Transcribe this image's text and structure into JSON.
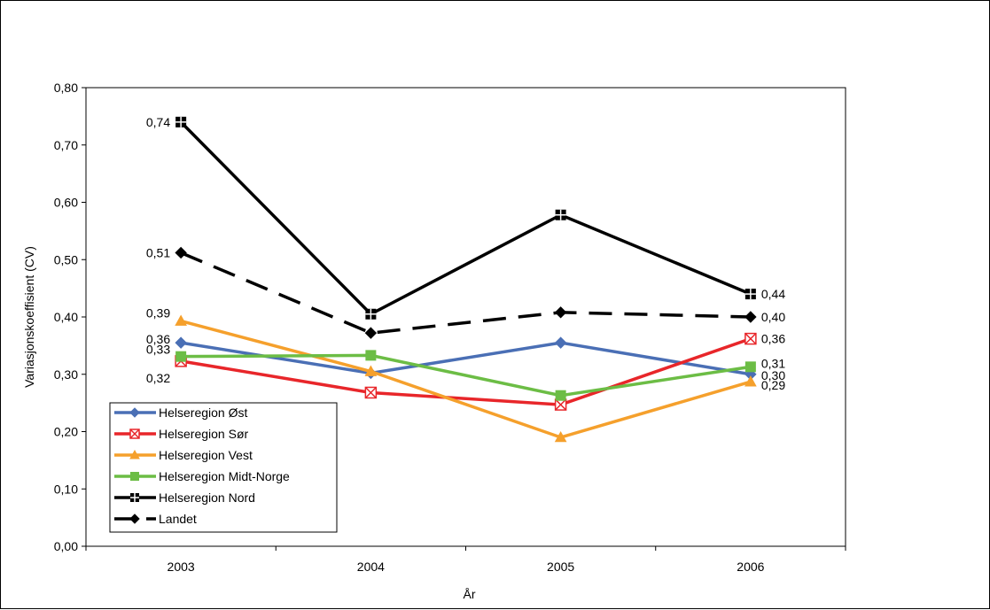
{
  "chart_data": {
    "type": "line",
    "title": "",
    "xlabel": "År",
    "ylabel": "Variasjonskoeffisient (CV)",
    "categories": [
      "2003",
      "2004",
      "2005",
      "2006"
    ],
    "ylim": [
      0,
      0.8
    ],
    "yticks": [
      "0,00",
      "0,10",
      "0,20",
      "0,30",
      "0,40",
      "0,50",
      "0,60",
      "0,70",
      "0,80"
    ],
    "grid": false,
    "legend_position": "bottom-left",
    "series": [
      {
        "name": "Helseregion Øst",
        "values": [
          0.355,
          0.302,
          0.355,
          0.3
        ],
        "color": "#4a6fb5",
        "marker": "diamond",
        "dash": "solid",
        "labels": [
          "0,36",
          "",
          "",
          "0,30"
        ]
      },
      {
        "name": "Helseregion Sør",
        "values": [
          0.323,
          0.268,
          0.247,
          0.362
        ],
        "color": "#e8262a",
        "marker": "xsquare",
        "dash": "solid",
        "labels": [
          "0,32",
          "",
          "",
          "0,36"
        ]
      },
      {
        "name": "Helseregion Vest",
        "values": [
          0.393,
          0.305,
          0.19,
          0.287
        ],
        "color": "#f5a02c",
        "marker": "triangle",
        "dash": "solid",
        "labels": [
          "0,39",
          "",
          "",
          "0,29"
        ]
      },
      {
        "name": "Helseregion Midt-Norge",
        "values": [
          0.331,
          0.333,
          0.263,
          0.313
        ],
        "color": "#6cbd45",
        "marker": "square",
        "dash": "solid",
        "labels": [
          "0,33",
          "",
          "",
          "0,31"
        ]
      },
      {
        "name": "Helseregion Nord",
        "values": [
          0.74,
          0.405,
          0.578,
          0.44
        ],
        "color": "#000000",
        "marker": "hashsquare",
        "dash": "solid",
        "labels": [
          "0,74",
          "",
          "",
          "0,44"
        ]
      },
      {
        "name": "Landet",
        "values": [
          0.512,
          0.372,
          0.408,
          0.4
        ],
        "color": "#000000",
        "marker": "diamond",
        "dash": "long",
        "labels": [
          "0,51",
          "",
          "",
          "0,40"
        ]
      }
    ]
  }
}
